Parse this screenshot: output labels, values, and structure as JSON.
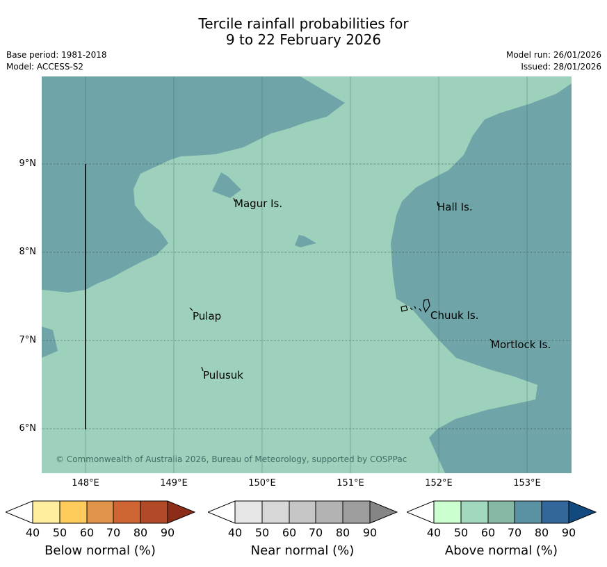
{
  "title": {
    "line1": "Tercile rainfall probabilities for",
    "line2": "9 to 22 February 2026"
  },
  "meta": {
    "base_period": "Base period: 1981-2018",
    "model": "Model: ACCESS-S2",
    "model_run": "Model run: 26/01/2026",
    "issued": "Issued: 28/01/2026"
  },
  "map": {
    "copyright": "© Commonwealth of Australia 2026, Bureau of Meteorology, supported by COSPPac",
    "lat_labels": [
      "9°N",
      "8°N",
      "7°N",
      "6°N"
    ],
    "lon_labels": [
      "148°E",
      "149°E",
      "150°E",
      "151°E",
      "152°E",
      "153°E"
    ],
    "islands": [
      {
        "name": "Magur Is."
      },
      {
        "name": "Hall Is."
      },
      {
        "name": "Pulap"
      },
      {
        "name": "Chuuk Is."
      },
      {
        "name": "Mortlock Is."
      },
      {
        "name": "Pulusuk"
      }
    ],
    "colors": {
      "near_normal_fill": "#9ed1bb",
      "above_normal_fill": "#6fa5a8"
    }
  },
  "colorbars": [
    {
      "name": "below",
      "label": "Below normal (%)",
      "ticks": [
        "40",
        "50",
        "60",
        "70",
        "80",
        "90"
      ],
      "colors": [
        "#ffffff",
        "#ffeda0",
        "#fecc5c",
        "#e0954a",
        "#cf6534",
        "#b24a28",
        "#8c2d1a"
      ]
    },
    {
      "name": "near",
      "label": "Near normal (%)",
      "ticks": [
        "40",
        "50",
        "60",
        "70",
        "80",
        "90"
      ],
      "colors": [
        "#ffffff",
        "#e6e6e6",
        "#d7d7d7",
        "#c6c6c6",
        "#b3b3b3",
        "#9e9e9e",
        "#858585"
      ]
    },
    {
      "name": "above",
      "label": "Above normal (%)",
      "ticks": [
        "40",
        "50",
        "60",
        "70",
        "80",
        "90"
      ],
      "colors": [
        "#ffffff",
        "#ccffd0",
        "#a2d8bd",
        "#86b8a6",
        "#5a92a3",
        "#33669a",
        "#124a7f"
      ]
    }
  ]
}
